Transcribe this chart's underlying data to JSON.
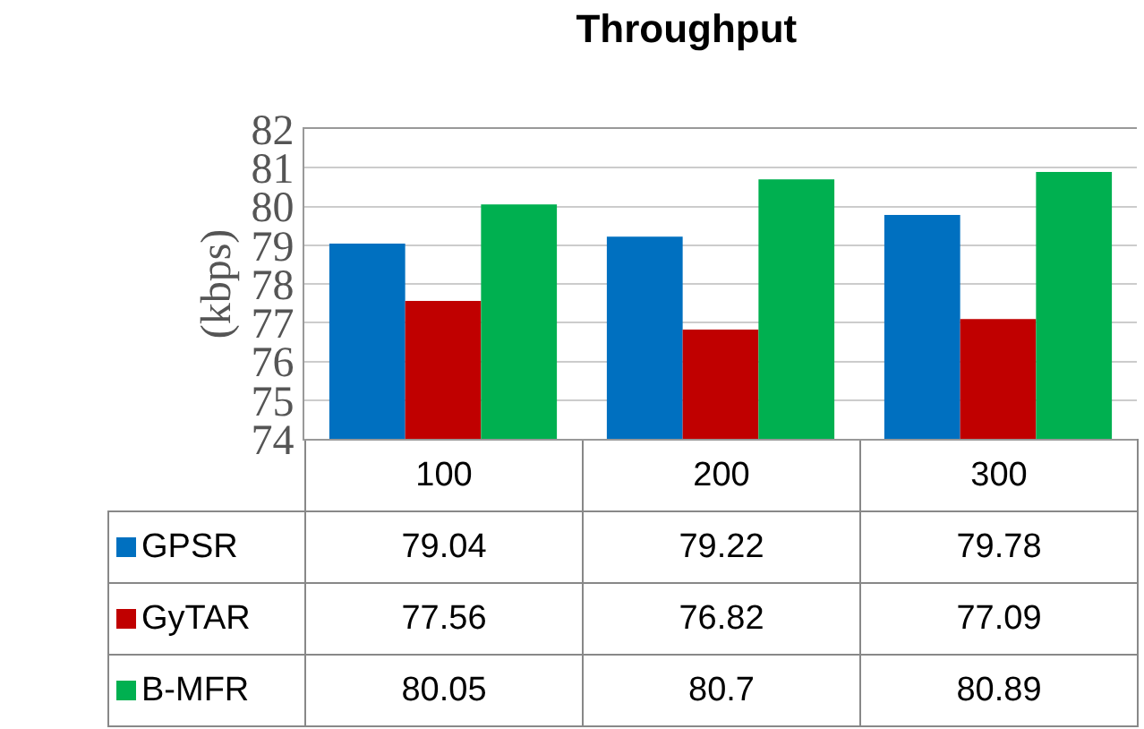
{
  "chart_data": {
    "type": "bar",
    "title": "Throughput",
    "ylabel": "(kbps)",
    "categories": [
      "100",
      "200",
      "300"
    ],
    "series": [
      {
        "name": "GPSR",
        "color": "#0070c0",
        "values": [
          79.04,
          79.22,
          79.78
        ]
      },
      {
        "name": "GyTAR",
        "color": "#c00000",
        "values": [
          77.56,
          76.82,
          77.09
        ]
      },
      {
        "name": "B-MFR",
        "color": "#00b050",
        "values": [
          80.05,
          80.7,
          80.89
        ]
      }
    ],
    "ylim": [
      74,
      82
    ],
    "yticks": [
      74,
      75,
      76,
      77,
      78,
      79,
      80,
      81,
      82
    ],
    "grid": "y",
    "legend": "bottom",
    "data_labels": true
  }
}
